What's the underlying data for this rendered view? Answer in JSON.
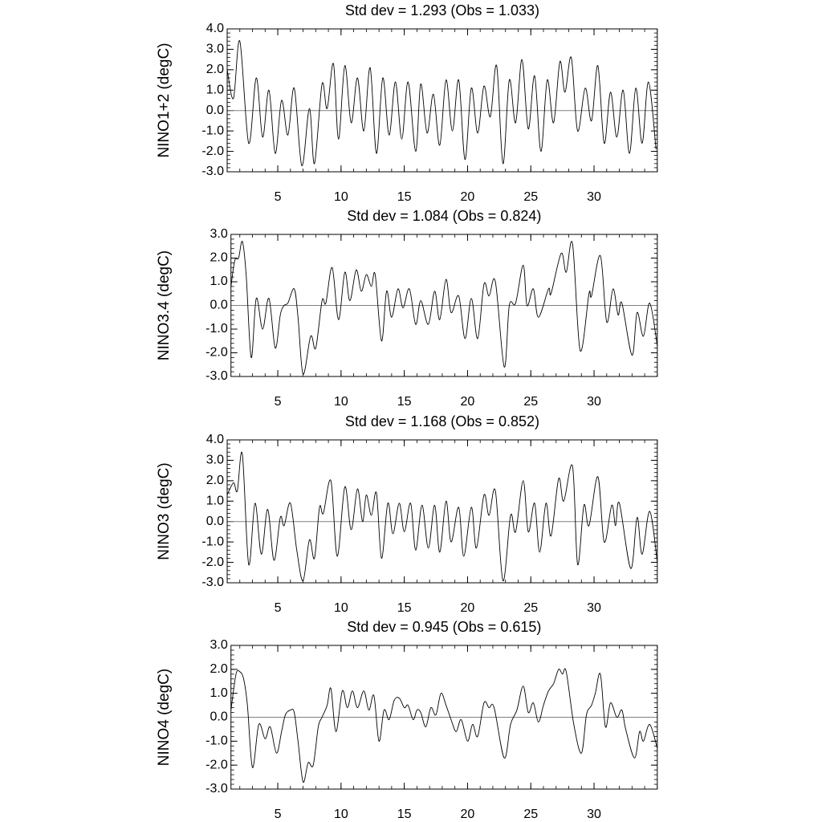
{
  "chart_data": [
    {
      "type": "line",
      "title": "Std dev = 1.293 (Obs = 1.033)",
      "y_label": "NINO1+2 (degC)",
      "color": "#000000",
      "reference_line": 0,
      "reference_color": "#808080",
      "xlim": [
        1,
        35
      ],
      "xticks": [
        5,
        10,
        15,
        20,
        25,
        30
      ],
      "ylim": [
        -3,
        4
      ],
      "yticks": [
        {
          "value": -3,
          "label": "-3.0"
        },
        {
          "value": -2,
          "label": "-2.0"
        },
        {
          "value": -1,
          "label": "-1.0"
        },
        {
          "value": 0,
          "label": "0.0"
        },
        {
          "value": 1,
          "label": "1.0"
        },
        {
          "value": 2,
          "label": "2.0"
        },
        {
          "value": 3,
          "label": "3.0"
        },
        {
          "value": 4,
          "label": "4.0"
        }
      ],
      "x": [
        1.0,
        1.5,
        2.0,
        2.7,
        3.3,
        3.8,
        4.3,
        4.8,
        5.3,
        5.8,
        6.3,
        6.9,
        7.5,
        7.9,
        8.5,
        8.9,
        9.4,
        9.8,
        10.3,
        10.8,
        11.3,
        11.8,
        12.3,
        12.8,
        13.3,
        13.8,
        14.3,
        14.8,
        15.3,
        15.9,
        16.3,
        16.8,
        17.3,
        17.8,
        18.3,
        18.8,
        19.3,
        19.8,
        20.3,
        20.8,
        21.3,
        21.8,
        22.3,
        22.8,
        23.3,
        23.8,
        24.3,
        24.8,
        25.3,
        25.8,
        26.3,
        26.8,
        27.3,
        27.7,
        28.2,
        28.7,
        29.3,
        29.8,
        30.3,
        30.8,
        31.3,
        31.8,
        32.3,
        32.8,
        33.3,
        33.8,
        34.3,
        34.9
      ],
      "values": [
        2.0,
        0.6,
        3.4,
        -1.6,
        1.6,
        -1.3,
        1.0,
        -2.1,
        0.5,
        -1.2,
        1.1,
        -2.7,
        0.1,
        -2.6,
        1.3,
        0.1,
        2.3,
        -1.4,
        2.2,
        -0.6,
        1.6,
        -1.0,
        2.1,
        -2.1,
        1.6,
        -1.2,
        1.4,
        -1.4,
        1.4,
        -2.0,
        1.3,
        -1.1,
        0.8,
        -1.7,
        1.5,
        -1.0,
        1.5,
        -2.4,
        1.1,
        -1.1,
        1.2,
        -0.3,
        2.2,
        -2.6,
        1.5,
        -0.6,
        2.5,
        -0.9,
        1.7,
        -2.0,
        1.5,
        -0.6,
        2.4,
        0.9,
        2.6,
        -1.0,
        1.1,
        -0.5,
        2.2,
        -1.6,
        0.9,
        -1.3,
        1.0,
        -2.1,
        1.1,
        -1.6,
        1.4,
        -1.9
      ]
    },
    {
      "type": "line",
      "title": "Std dev = 1.084 (Obs = 0.824)",
      "y_label": "NINO3.4 (degC)",
      "color": "#000000",
      "reference_line": 0,
      "reference_color": "#808080",
      "xlim": [
        1.3,
        35
      ],
      "xticks": [
        5,
        10,
        15,
        20,
        25,
        30
      ],
      "ylim": [
        -3,
        3
      ],
      "yticks": [
        {
          "value": -3,
          "label": "-3.0"
        },
        {
          "value": -2,
          "label": "-2.0"
        },
        {
          "value": -1,
          "label": "-1.0"
        },
        {
          "value": 0,
          "label": "0.0"
        },
        {
          "value": 1,
          "label": "1.0"
        },
        {
          "value": 2,
          "label": "2.0"
        },
        {
          "value": 3,
          "label": "3.0"
        }
      ],
      "x": [
        1.3,
        1.6,
        1.9,
        2.2,
        2.5,
        2.9,
        3.3,
        3.8,
        4.3,
        4.8,
        5.2,
        5.5,
        5.8,
        6.3,
        6.6,
        7.0,
        7.6,
        8.0,
        8.5,
        8.8,
        9.3,
        9.8,
        10.3,
        10.7,
        11.2,
        11.6,
        12.0,
        12.4,
        12.7,
        13.2,
        13.6,
        14.0,
        14.5,
        14.9,
        15.4,
        15.9,
        16.3,
        16.9,
        17.4,
        17.8,
        18.3,
        18.7,
        19.3,
        19.8,
        20.3,
        20.8,
        21.3,
        21.7,
        22.2,
        22.9,
        23.3,
        23.8,
        24.4,
        24.7,
        25.2,
        25.6,
        26.4,
        26.6,
        27.4,
        27.8,
        28.3,
        28.9,
        29.6,
        29.8,
        30.5,
        31.0,
        31.5,
        31.9,
        32.2,
        33.0,
        33.4,
        33.9,
        34.4,
        35.0
      ],
      "values": [
        0.8,
        1.9,
        2.0,
        2.7,
        1.3,
        -2.2,
        0.3,
        -1.0,
        0.3,
        -1.8,
        -0.4,
        0.0,
        0.1,
        0.7,
        -0.5,
        -2.9,
        -1.3,
        -1.8,
        0.2,
        0.1,
        1.6,
        -0.6,
        1.4,
        0.2,
        1.5,
        0.6,
        1.3,
        0.8,
        1.3,
        -1.5,
        0.6,
        -0.5,
        0.7,
        -0.1,
        0.7,
        -0.8,
        0.2,
        -0.8,
        0.6,
        -0.6,
        1.1,
        -0.3,
        0.4,
        -1.4,
        0.3,
        -1.4,
        0.9,
        0.4,
        1.0,
        -2.6,
        0.0,
        0.1,
        1.7,
        0.0,
        0.7,
        -0.5,
        0.7,
        0.5,
        2.2,
        1.4,
        2.6,
        -1.9,
        0.5,
        0.4,
        2.1,
        -0.7,
        0.7,
        -0.4,
        0.1,
        -2.1,
        -0.3,
        -1.3,
        0.1,
        -1.7
      ]
    },
    {
      "type": "line",
      "title": "Std dev = 1.168 (Obs = 0.852)",
      "y_label": "NINO3 (degC)",
      "color": "#000000",
      "reference_line": 0,
      "reference_color": "#808080",
      "xlim": [
        1,
        35
      ],
      "xticks": [
        5,
        10,
        15,
        20,
        25,
        30
      ],
      "ylim": [
        -3,
        4
      ],
      "yticks": [
        {
          "value": -3,
          "label": "-3.0"
        },
        {
          "value": -2,
          "label": "-2.0"
        },
        {
          "value": -1,
          "label": "-1.0"
        },
        {
          "value": 0,
          "label": "0.0"
        },
        {
          "value": 1,
          "label": "1.0"
        },
        {
          "value": 2,
          "label": "2.0"
        },
        {
          "value": 3,
          "label": "3.0"
        },
        {
          "value": 4,
          "label": "4.0"
        }
      ],
      "x": [
        1.0,
        1.5,
        1.8,
        2.2,
        2.7,
        3.2,
        3.7,
        4.2,
        4.7,
        5.2,
        5.5,
        6.0,
        6.5,
        7.0,
        7.5,
        7.9,
        8.3,
        8.6,
        9.2,
        9.7,
        10.3,
        10.8,
        11.3,
        11.7,
        12.0,
        12.4,
        12.8,
        13.2,
        13.7,
        14.1,
        14.6,
        15.0,
        15.5,
        15.9,
        16.4,
        16.9,
        17.4,
        17.8,
        18.3,
        18.7,
        19.3,
        19.7,
        20.3,
        20.7,
        21.3,
        21.7,
        22.2,
        22.8,
        23.4,
        23.8,
        24.4,
        24.8,
        25.3,
        25.7,
        26.2,
        26.6,
        27.2,
        27.6,
        28.3,
        28.7,
        29.2,
        29.6,
        30.3,
        30.8,
        31.4,
        31.7,
        32.0,
        32.9,
        33.4,
        33.8,
        34.4,
        35.0
      ],
      "values": [
        1.3,
        1.9,
        1.5,
        3.3,
        -2.1,
        0.9,
        -1.6,
        0.6,
        -1.9,
        0.2,
        -0.2,
        0.9,
        -1.4,
        -2.9,
        -0.9,
        -1.8,
        0.7,
        0.4,
        2.0,
        -1.7,
        1.7,
        -0.4,
        1.6,
        0.0,
        1.3,
        0.3,
        1.4,
        -1.8,
        0.9,
        -0.6,
        0.9,
        -0.5,
        0.9,
        -1.4,
        0.8,
        -1.3,
        0.8,
        -1.5,
        1.0,
        -1.0,
        0.7,
        -1.7,
        0.7,
        -1.3,
        1.3,
        0.3,
        1.5,
        -2.9,
        0.3,
        -0.5,
        2.0,
        -0.5,
        0.9,
        -1.5,
        0.9,
        -0.7,
        2.1,
        1.0,
        2.7,
        -2.1,
        0.8,
        -0.2,
        2.2,
        -1.0,
        0.8,
        -0.2,
        0.9,
        -2.3,
        0.2,
        -1.6,
        0.5,
        -2.0
      ]
    },
    {
      "type": "line",
      "title": "Std dev = 0.945 (Obs = 0.615)",
      "y_label": "NINO4 (degC)",
      "color": "#000000",
      "reference_line": 0,
      "reference_color": "#808080",
      "xlim": [
        1.3,
        35
      ],
      "xticks": [
        5,
        10,
        15,
        20,
        25,
        30
      ],
      "ylim": [
        -3,
        3
      ],
      "yticks": [
        {
          "value": -3,
          "label": "-3.0"
        },
        {
          "value": -2,
          "label": "-2.0"
        },
        {
          "value": -1,
          "label": "-1.0"
        },
        {
          "value": 0,
          "label": "0.0"
        },
        {
          "value": 1,
          "label": "1.0"
        },
        {
          "value": 2,
          "label": "2.0"
        },
        {
          "value": 3,
          "label": "3.0"
        }
      ],
      "x": [
        1.3,
        1.7,
        2.0,
        2.3,
        2.6,
        3.0,
        3.5,
        4.0,
        4.4,
        4.9,
        5.3,
        5.6,
        6.0,
        6.3,
        6.6,
        7.0,
        7.4,
        7.8,
        8.2,
        8.5,
        8.9,
        9.2,
        9.6,
        10.1,
        10.5,
        10.9,
        11.3,
        11.8,
        12.2,
        12.6,
        13.0,
        13.4,
        13.8,
        14.2,
        14.6,
        15.0,
        15.3,
        15.7,
        16.0,
        16.3,
        16.7,
        17.1,
        17.5,
        17.9,
        18.3,
        18.7,
        19.1,
        19.5,
        20.0,
        20.4,
        20.8,
        21.3,
        21.7,
        22.1,
        22.9,
        23.4,
        23.9,
        24.4,
        24.8,
        25.2,
        25.6,
        26.0,
        26.4,
        26.8,
        27.2,
        27.5,
        27.8,
        28.4,
        29.0,
        29.4,
        29.8,
        30.1,
        30.5,
        30.9,
        31.3,
        31.8,
        32.2,
        32.5,
        33.2,
        33.6,
        33.9,
        34.4,
        35.0
      ],
      "values": [
        0.3,
        1.8,
        1.9,
        1.6,
        0.5,
        -2.1,
        -0.3,
        -0.9,
        -0.4,
        -1.5,
        -0.6,
        0.1,
        0.3,
        0.2,
        -1.0,
        -2.7,
        -1.9,
        -2.0,
        -0.4,
        0.0,
        0.5,
        1.2,
        -0.6,
        1.1,
        0.4,
        1.1,
        0.4,
        1.1,
        0.3,
        0.9,
        -1.0,
        0.3,
        -0.1,
        0.7,
        0.8,
        0.4,
        0.5,
        -0.1,
        0.3,
        0.2,
        -0.4,
        0.4,
        0.1,
        1.0,
        0.5,
        -0.1,
        -0.6,
        -0.1,
        -1.0,
        -0.3,
        -0.8,
        0.6,
        0.4,
        0.4,
        -1.7,
        -0.3,
        0.3,
        1.3,
        0.2,
        0.6,
        -0.2,
        0.5,
        1.1,
        1.4,
        2.0,
        1.8,
        1.9,
        -0.3,
        -1.5,
        0.1,
        0.5,
        1.0,
        1.8,
        -0.4,
        0.6,
        0.0,
        0.3,
        -0.5,
        -1.7,
        -0.6,
        -1.0,
        -0.3,
        -1.3
      ]
    }
  ]
}
